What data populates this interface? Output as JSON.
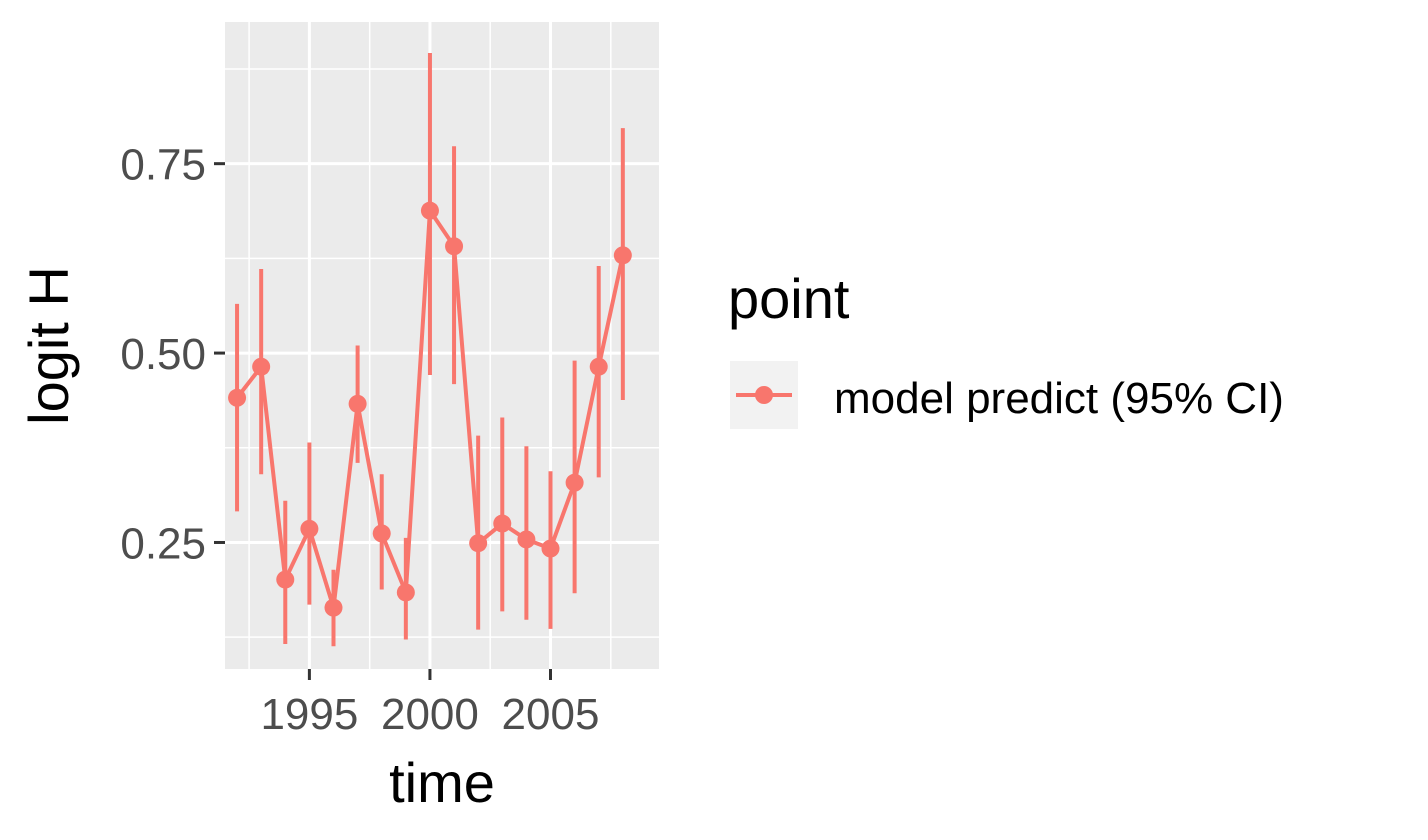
{
  "chart_data": {
    "type": "line",
    "xlabel": "time",
    "ylabel": "logit H",
    "xlim": [
      1991.5,
      2009.5
    ],
    "ylim": [
      0.083,
      0.937
    ],
    "x_ticks": [
      1995,
      2000,
      2005
    ],
    "x_tick_labels": [
      "1995",
      "2000",
      "2005"
    ],
    "y_ticks": [
      0.25,
      0.5,
      0.75
    ],
    "y_tick_labels": [
      "0.25",
      "0.50",
      "0.75"
    ],
    "grid": true,
    "legend": {
      "title": "point",
      "placement": "right",
      "entries": [
        {
          "label": "model predict (95% CI)",
          "color": "#F8766D"
        }
      ]
    },
    "series": [
      {
        "name": "model predict (95% CI)",
        "color": "#F8766D",
        "x": [
          1992,
          1993,
          1994,
          1995,
          1996,
          1997,
          1998,
          1999,
          2000,
          2001,
          2002,
          2003,
          2004,
          2005,
          2006,
          2007,
          2008
        ],
        "y": [
          0.441,
          0.482,
          0.201,
          0.268,
          0.164,
          0.433,
          0.262,
          0.184,
          0.688,
          0.641,
          0.249,
          0.275,
          0.254,
          0.242,
          0.329,
          0.482,
          0.629
        ],
        "ci_low": [
          0.291,
          0.34,
          0.116,
          0.168,
          0.113,
          0.355,
          0.188,
          0.122,
          0.471,
          0.459,
          0.135,
          0.159,
          0.148,
          0.136,
          0.183,
          0.336,
          0.438
        ],
        "ci_high": [
          0.565,
          0.611,
          0.305,
          0.382,
          0.214,
          0.51,
          0.34,
          0.256,
          0.896,
          0.773,
          0.391,
          0.415,
          0.377,
          0.344,
          0.49,
          0.615,
          0.797
        ]
      }
    ]
  }
}
